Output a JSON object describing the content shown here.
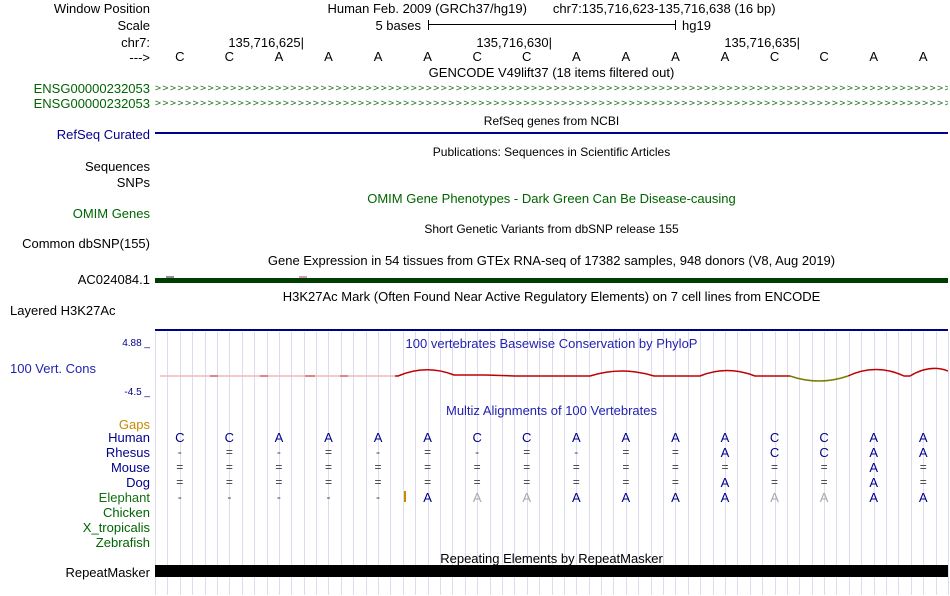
{
  "colors": {
    "title_blue": "#2222b2",
    "label_navy": "#00008b",
    "gene_green": "#006400",
    "gaps_orange": "#c88a00",
    "wiggle_red": "#c00000",
    "wiggle_olive": "#7c7c00",
    "gtex_bar_green": "#003d00",
    "repeat_black": "#000000",
    "gridline": "#dcdcee"
  },
  "header": {
    "left_label": "Window Position",
    "assembly_title": "Human Feb. 2009 (GRCh37/hg19)",
    "position": "chr7:135,716,623-135,716,638 (16 bp)"
  },
  "scale": {
    "left_label": "Scale",
    "bar_label": "5 bases",
    "assembly_tag": "hg19"
  },
  "ruler": {
    "left_label": "chr7:",
    "ticks": [
      "135,716,625|",
      "135,716,630|",
      "135,716,635|"
    ]
  },
  "sequence": {
    "left_label": "--->",
    "bases": [
      "C",
      "C",
      "A",
      "A",
      "A",
      "A",
      "C",
      "C",
      "A",
      "A",
      "A",
      "A",
      "C",
      "C",
      "A",
      "A"
    ]
  },
  "gencode": {
    "title": "GENCODE V49lift37 (18 items filtered out)",
    "arrow_char": ">",
    "transcripts": [
      {
        "label": "ENSG00000232053"
      },
      {
        "label": "ENSG00000232053"
      }
    ]
  },
  "refseq": {
    "title": "RefSeq genes from NCBI",
    "left_label": "RefSeq Curated"
  },
  "publications": {
    "title": "Publications: Sequences in Scientific Articles",
    "left_label": "Sequences"
  },
  "snps": {
    "left_label": "SNPs"
  },
  "omim": {
    "title": "OMIM Gene Phenotypes - Dark Green Can Be Disease-causing",
    "left_label": "OMIM Genes"
  },
  "dbsnp": {
    "title": "Short Genetic Variants from dbSNP release 155",
    "left_label": "Common dbSNP(155)"
  },
  "gtex": {
    "title": "Gene Expression in 54 tissues from GTEx RNA-seq of 17382 samples, 948 donors (V8, Aug 2019)",
    "left_label": "AC024084.1"
  },
  "h3k27ac": {
    "title": "H3K27Ac Mark (Often Found Near Active Regulatory Elements) on 7 cell lines from ENCODE",
    "left_label": "Layered H3K27Ac"
  },
  "phylop": {
    "title": "100 vertebrates Basewise Conservation by PhyloP",
    "left_label": "100 Vert. Cons",
    "max_label": "4.88 _",
    "min_label": "-4.5 _"
  },
  "multiz": {
    "title": "Multiz Alignments of 100 Vertebrates",
    "gaps_label": "Gaps",
    "rows": [
      {
        "name": "Human",
        "color": "#00008b",
        "cells": [
          "C",
          "C",
          "A",
          "A",
          "A",
          "A",
          "C",
          "C",
          "A",
          "A",
          "A",
          "A",
          "C",
          "C",
          "A",
          "A"
        ]
      },
      {
        "name": "Rhesus",
        "color": "#00008b",
        "cells": [
          "-",
          "=",
          "-",
          "=",
          "-",
          "=",
          "-",
          "=",
          "-",
          "=",
          "=",
          "A",
          "C",
          "C",
          "A",
          "A"
        ]
      },
      {
        "name": "Mouse",
        "color": "#00008b",
        "cells": [
          "=",
          "=",
          "=",
          "=",
          "=",
          "=",
          "=",
          "=",
          "=",
          "=",
          "=",
          "=",
          "=",
          "=",
          "A",
          "="
        ]
      },
      {
        "name": "Dog",
        "color": "#00008b",
        "cells": [
          "=",
          "=",
          "=",
          "=",
          "=",
          "=",
          "=",
          "=",
          "=",
          "=",
          "=",
          "A",
          "=",
          "=",
          "A",
          "="
        ]
      },
      {
        "name": "Elephant",
        "color": "#107010",
        "cells": [
          "-",
          "-",
          "-",
          "-",
          "-",
          "A",
          "a",
          "a",
          "A",
          "A",
          "A",
          "A",
          "a",
          "a",
          "A",
          "A"
        ]
      },
      {
        "name": "Chicken",
        "color": "#006400",
        "cells": []
      },
      {
        "name": "X_tropicalis",
        "color": "#006400",
        "cells": []
      },
      {
        "name": "Zebrafish",
        "color": "#006400",
        "cells": []
      }
    ]
  },
  "repeatmasker": {
    "title": "Repeating Elements by RepeatMasker",
    "left_label": "RepeatMasker"
  }
}
